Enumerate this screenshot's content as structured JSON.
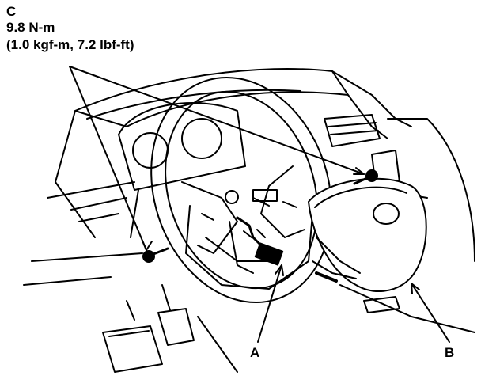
{
  "callouts": {
    "c": {
      "letter": "C",
      "torque_nm": "9.8 N-m",
      "torque_alt": "(1.0 kgf-m, 7.2 lbf-ft)"
    },
    "a": {
      "letter": "A"
    },
    "b": {
      "letter": "B"
    }
  },
  "colors": {
    "ink": "#000000",
    "paper": "#ffffff"
  }
}
